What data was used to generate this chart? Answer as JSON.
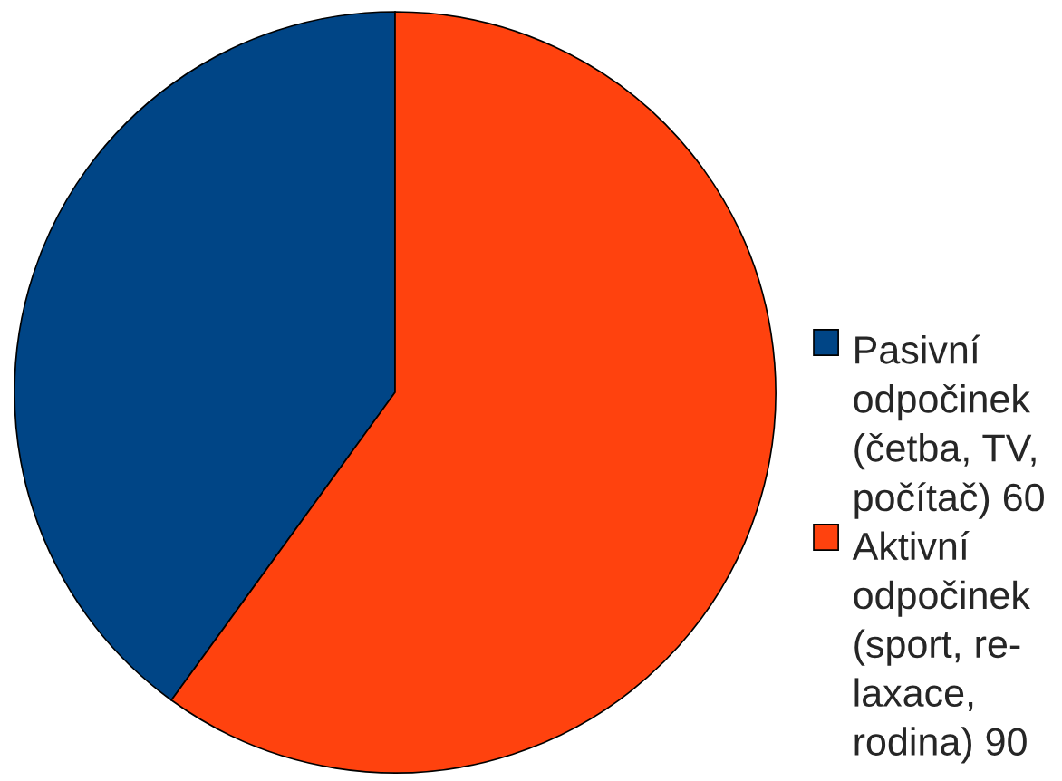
{
  "chart_data": {
    "type": "pie",
    "categories": [
      "Pasivní\nodpočinek\n(četba, TV,\npočítač) 60",
      "Aktivní\nodpočinek\n(sport, re-\nlaxace,\nrodina) 90"
    ],
    "values": [
      60,
      90
    ],
    "colors": [
      "#004586",
      "#ff420e"
    ],
    "legend": "right"
  }
}
